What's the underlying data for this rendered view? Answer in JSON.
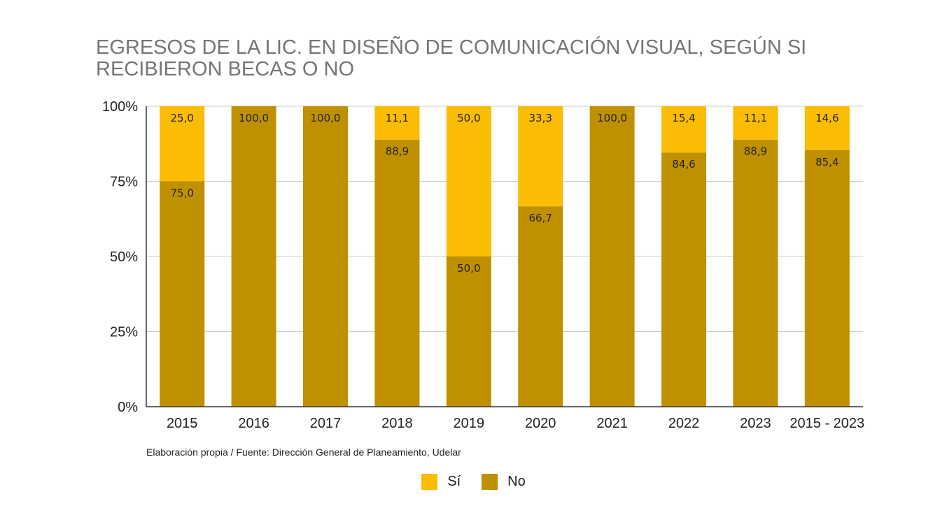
{
  "chart_data": {
    "type": "bar",
    "stacked": true,
    "percent": true,
    "title": "EGRESOS DE LA LIC. EN DISEÑO DE COMUNICACIÓN VISUAL, SEGÚN SI RECIBIERON BECAS O NO",
    "categories": [
      "2015",
      "2016",
      "2017",
      "2018",
      "2019",
      "2020",
      "2021",
      "2022",
      "2023",
      "2015 - 2023"
    ],
    "series": [
      {
        "name": "Sí",
        "color": "#FBBC04",
        "values": [
          25.0,
          0,
          0,
          11.1,
          50.0,
          33.3,
          0,
          15.4,
          11.1,
          14.6
        ],
        "labels": [
          "25,0",
          "",
          "",
          "11,1",
          "50,0",
          "33,3",
          "",
          "15,4",
          "11,1",
          "14,6"
        ]
      },
      {
        "name": "No",
        "color": "#BF9000",
        "values": [
          75.0,
          100.0,
          100.0,
          88.9,
          50.0,
          66.7,
          100.0,
          84.6,
          88.9,
          85.4
        ],
        "labels": [
          "75,0",
          "100,0",
          "100,0",
          "88,9",
          "50,0",
          "66,7",
          "100,0",
          "84,6",
          "88,9",
          "85,4"
        ]
      }
    ],
    "ylim": [
      0,
      100
    ],
    "yticks": [
      0,
      25,
      50,
      75,
      100
    ],
    "ytick_labels": [
      "0%",
      "25%",
      "50%",
      "75%",
      "100%"
    ],
    "grid": true,
    "legend_position": "bottom",
    "source_note": "Elaboración propia / Fuente: Dirección General de Planeamiento, Udelar"
  }
}
